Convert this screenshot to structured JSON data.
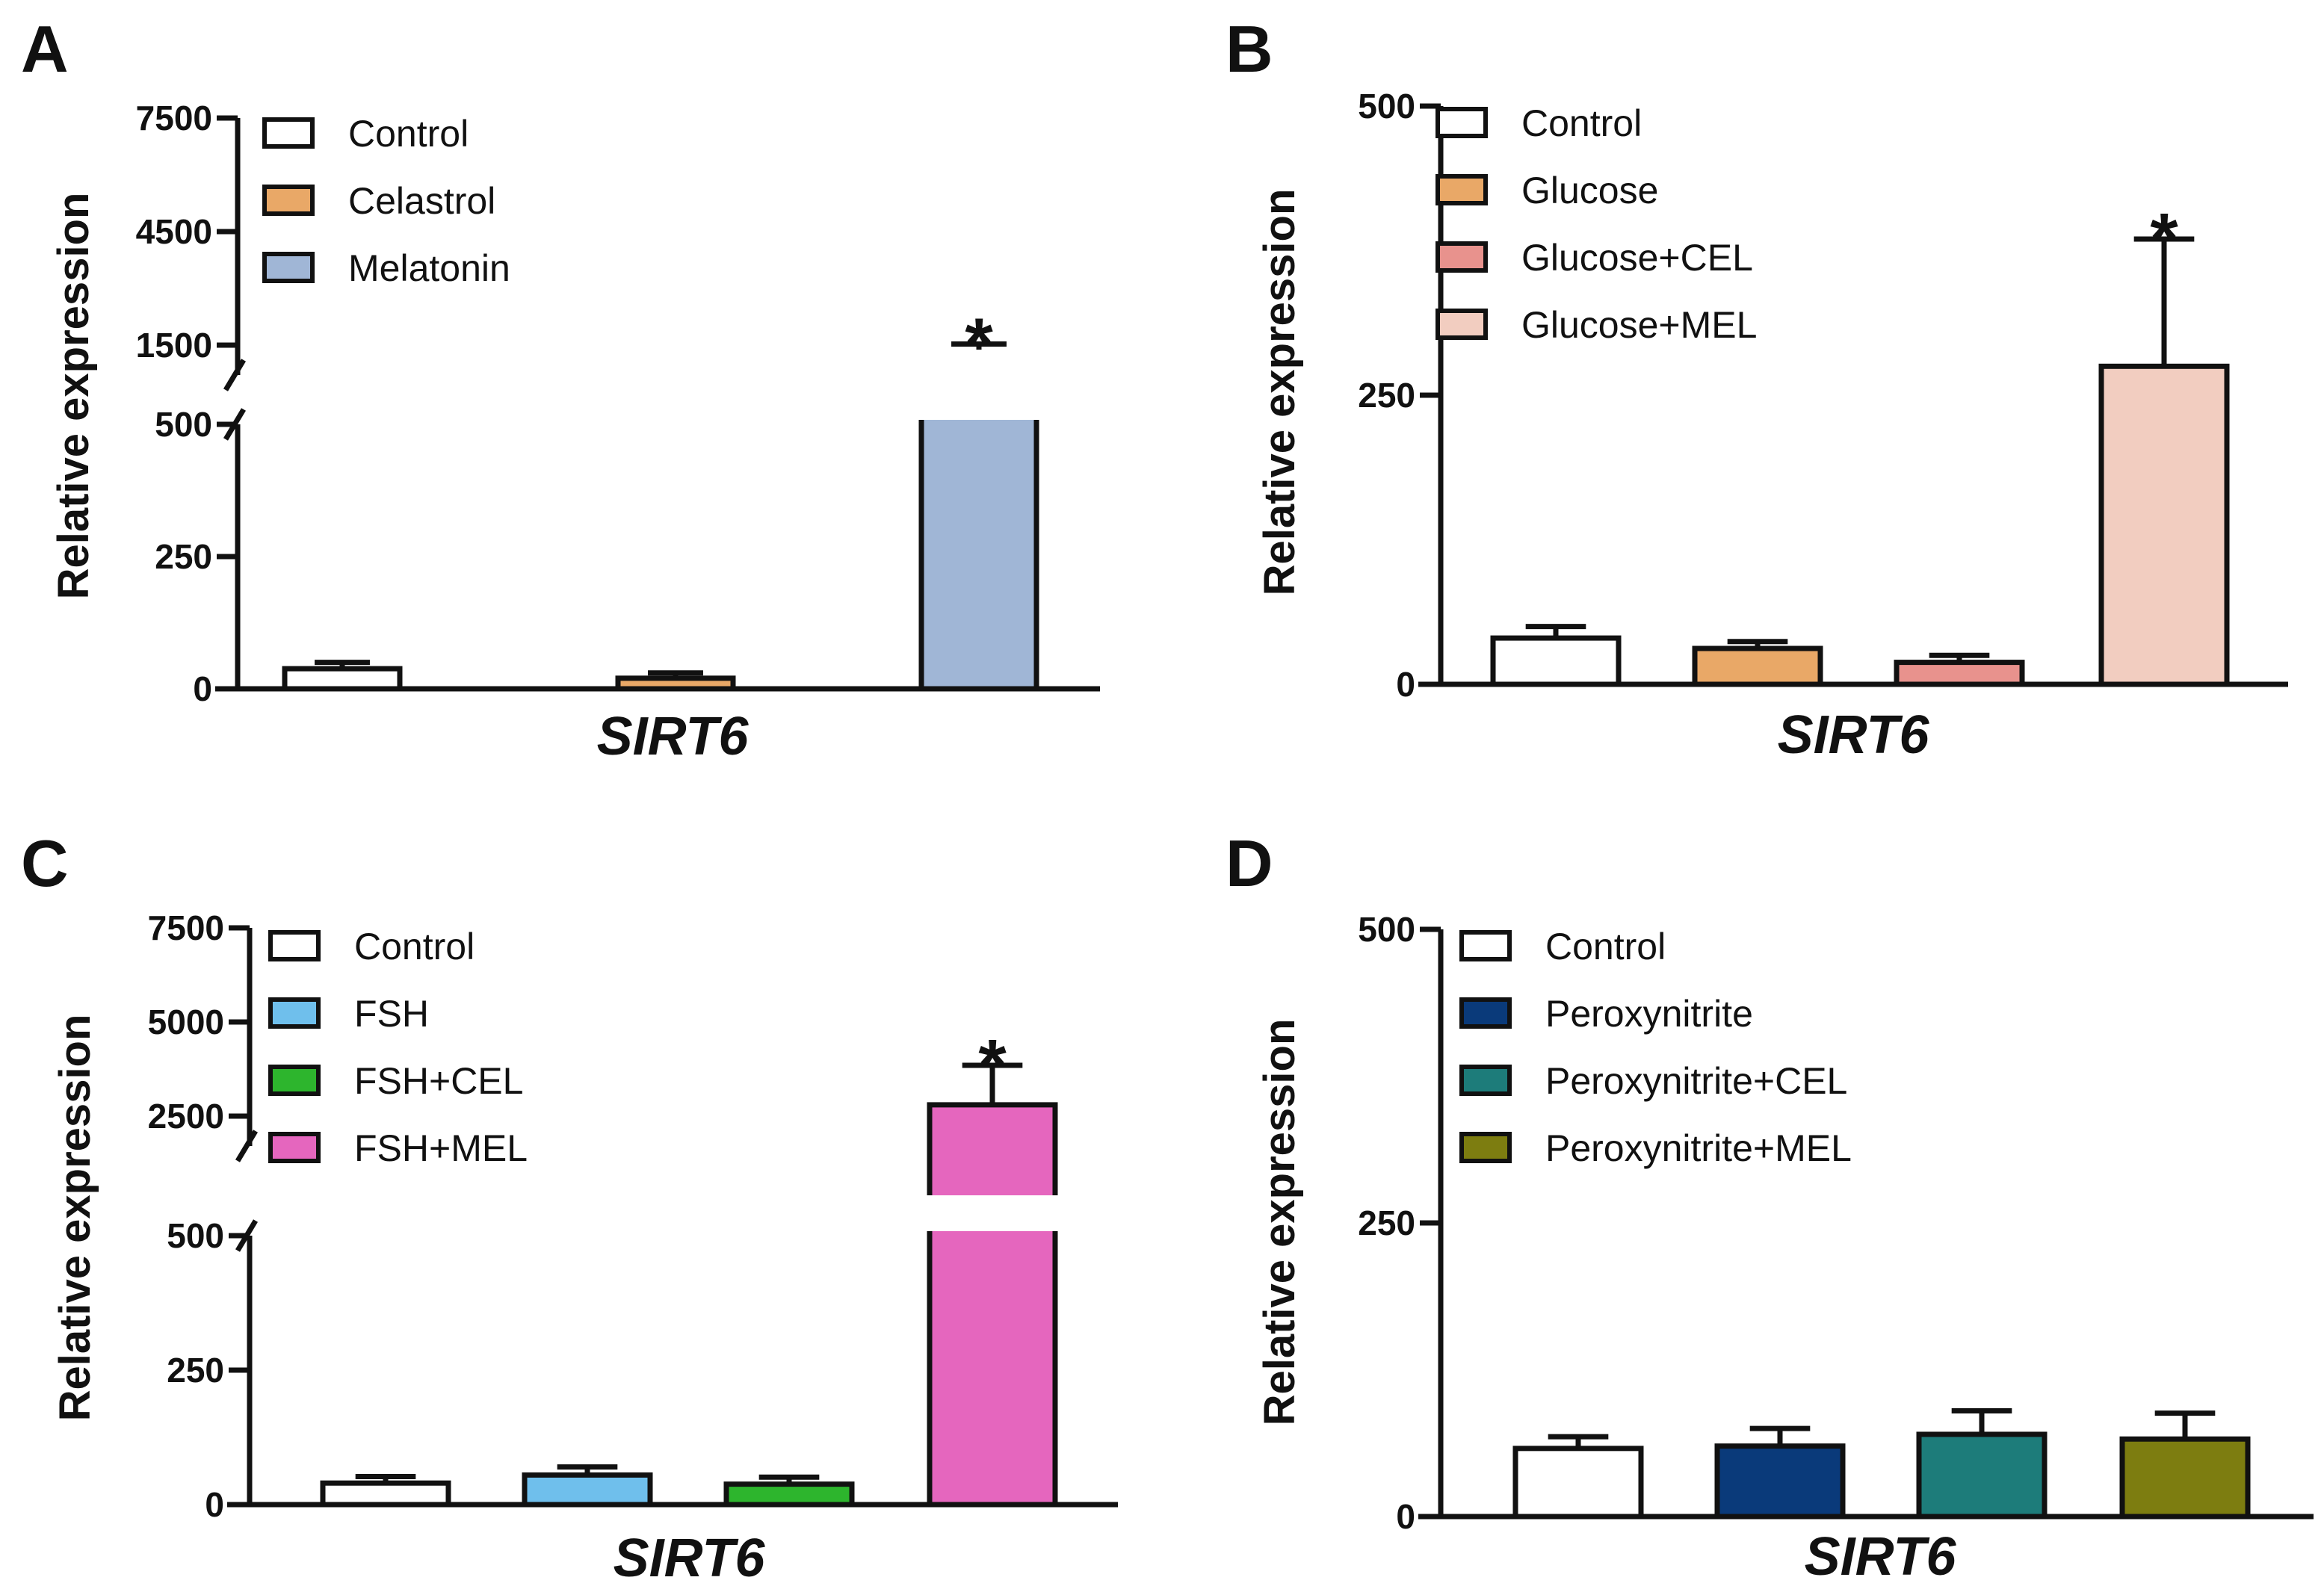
{
  "chart_data": [
    {
      "panel": "A",
      "type": "bar",
      "title": "",
      "xlabel": "SIRT6",
      "ylabel": "Relative expression",
      "broken_axis": true,
      "lower_ylim": [
        0,
        500
      ],
      "upper_ylim": [
        1500,
        7500
      ],
      "lower_ticks": [
        "0",
        "250",
        "500"
      ],
      "upper_ticks": [
        "1500",
        "4500",
        "7500"
      ],
      "series": [
        {
          "name": "Control",
          "value": 38,
          "error": 12,
          "color": "#ffffff"
        },
        {
          "name": "Celastrol",
          "value": 20,
          "error": 10,
          "color": "#e9a867"
        },
        {
          "name": "Melatonin",
          "value": 1250,
          "error": 280,
          "color": "#a0b6d6"
        }
      ],
      "significance": [
        {
          "series": "Melatonin",
          "label": "*"
        }
      ]
    },
    {
      "panel": "B",
      "type": "bar",
      "title": "",
      "xlabel": "SIRT6",
      "ylabel": "Relative expression",
      "broken_axis": false,
      "ylim": [
        0,
        500
      ],
      "ticks": [
        "0",
        "250",
        "500"
      ],
      "series": [
        {
          "name": "Control",
          "value": 40,
          "error": 10,
          "color": "#ffffff"
        },
        {
          "name": "Glucose",
          "value": 31,
          "error": 6,
          "color": "#e9a867"
        },
        {
          "name": "Glucose+CEL",
          "value": 19,
          "error": 6,
          "color": "#e8928d"
        },
        {
          "name": "Glucose+MEL",
          "value": 275,
          "error": 110,
          "color": "#f2cdc0"
        }
      ],
      "significance": [
        {
          "series": "Glucose+MEL",
          "label": "*"
        }
      ]
    },
    {
      "panel": "C",
      "type": "bar",
      "title": "",
      "xlabel": "SIRT6",
      "ylabel": "Relative expression",
      "broken_axis": true,
      "lower_ylim": [
        0,
        500
      ],
      "upper_ylim": [
        2500,
        7500
      ],
      "lower_ticks": [
        "0",
        "250",
        "500"
      ],
      "upper_ticks": [
        "2500",
        "5000",
        "7500"
      ],
      "series": [
        {
          "name": "Control",
          "value": 40,
          "error": 12,
          "color": "#ffffff"
        },
        {
          "name": "FSH",
          "value": 55,
          "error": 15,
          "color": "#6fbfec"
        },
        {
          "name": "FSH+CEL",
          "value": 38,
          "error": 13,
          "color": "#2db52d"
        },
        {
          "name": "FSH+MEL",
          "value": 2800,
          "error": 1050,
          "color": "#e566be"
        }
      ],
      "significance": [
        {
          "series": "FSH+MEL",
          "label": "*"
        }
      ]
    },
    {
      "panel": "D",
      "type": "bar",
      "title": "",
      "xlabel": "SIRT6",
      "ylabel": "Relative expression",
      "broken_axis": false,
      "ylim": [
        0,
        500
      ],
      "ticks": [
        "0",
        "250",
        "500"
      ],
      "series": [
        {
          "name": "Control",
          "value": 58,
          "error": 10,
          "color": "#ffffff"
        },
        {
          "name": "Peroxynitrite",
          "value": 60,
          "error": 15,
          "color": "#0a3a7a"
        },
        {
          "name": "Peroxynitrite+CEL",
          "value": 70,
          "error": 20,
          "color": "#1d7c7a"
        },
        {
          "name": "Peroxynitrite+MEL",
          "value": 66,
          "error": 22,
          "color": "#7d7d10"
        }
      ],
      "significance": []
    }
  ]
}
